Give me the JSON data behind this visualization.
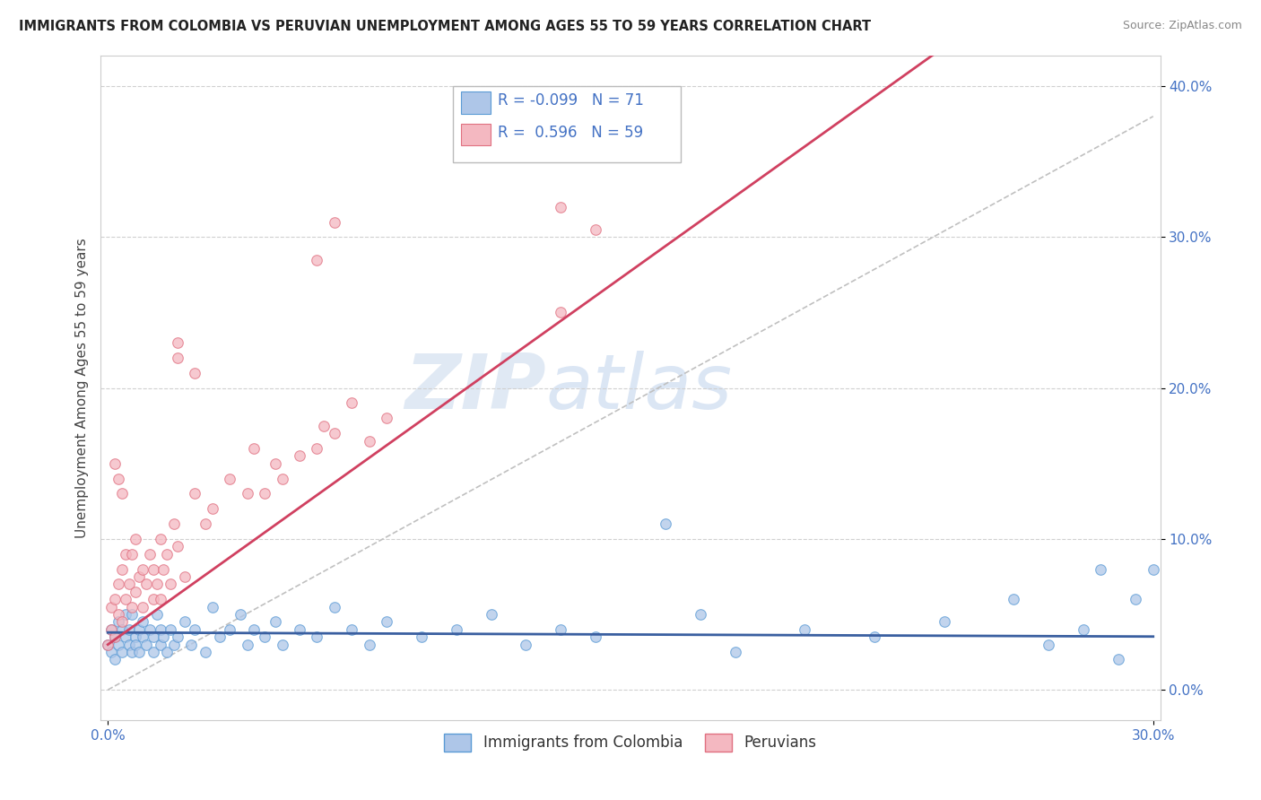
{
  "title": "IMMIGRANTS FROM COLOMBIA VS PERUVIAN UNEMPLOYMENT AMONG AGES 55 TO 59 YEARS CORRELATION CHART",
  "source": "Source: ZipAtlas.com",
  "ylabel": "Unemployment Among Ages 55 to 59 years",
  "xlim": [
    -0.002,
    0.302
  ],
  "ylim": [
    -0.02,
    0.42
  ],
  "xtick_positions": [
    0.0,
    0.3
  ],
  "xticklabels": [
    "0.0%",
    "30.0%"
  ],
  "ytick_positions": [
    0.0,
    0.1,
    0.2,
    0.3,
    0.4
  ],
  "yticklabels": [
    "0.0%",
    "10.0%",
    "20.0%",
    "30.0%",
    "40.0%"
  ],
  "colombia_color": "#aec6e8",
  "colombia_edge": "#5b9bd5",
  "peru_color": "#f4b8c1",
  "peru_edge": "#e07080",
  "colombia_line_color": "#3a5fa0",
  "peru_line_color": "#d04060",
  "trendline_color": "#c0c0c0",
  "R_colombia": -0.099,
  "N_colombia": 71,
  "R_peru": 0.596,
  "N_peru": 59,
  "watermark": "ZIPatlas",
  "legend_label_colombia": "Immigrants from Colombia",
  "legend_label_peru": "Peruvians",
  "colombia_scatter": [
    [
      0.0,
      0.03
    ],
    [
      0.001,
      0.025
    ],
    [
      0.001,
      0.04
    ],
    [
      0.002,
      0.035
    ],
    [
      0.002,
      0.02
    ],
    [
      0.003,
      0.03
    ],
    [
      0.003,
      0.045
    ],
    [
      0.004,
      0.025
    ],
    [
      0.004,
      0.04
    ],
    [
      0.005,
      0.035
    ],
    [
      0.005,
      0.05
    ],
    [
      0.006,
      0.03
    ],
    [
      0.006,
      0.04
    ],
    [
      0.007,
      0.025
    ],
    [
      0.007,
      0.05
    ],
    [
      0.008,
      0.035
    ],
    [
      0.008,
      0.03
    ],
    [
      0.009,
      0.04
    ],
    [
      0.009,
      0.025
    ],
    [
      0.01,
      0.035
    ],
    [
      0.01,
      0.045
    ],
    [
      0.011,
      0.03
    ],
    [
      0.012,
      0.04
    ],
    [
      0.013,
      0.025
    ],
    [
      0.013,
      0.035
    ],
    [
      0.014,
      0.05
    ],
    [
      0.015,
      0.03
    ],
    [
      0.015,
      0.04
    ],
    [
      0.016,
      0.035
    ],
    [
      0.017,
      0.025
    ],
    [
      0.018,
      0.04
    ],
    [
      0.019,
      0.03
    ],
    [
      0.02,
      0.035
    ],
    [
      0.022,
      0.045
    ],
    [
      0.024,
      0.03
    ],
    [
      0.025,
      0.04
    ],
    [
      0.028,
      0.025
    ],
    [
      0.03,
      0.055
    ],
    [
      0.032,
      0.035
    ],
    [
      0.035,
      0.04
    ],
    [
      0.038,
      0.05
    ],
    [
      0.04,
      0.03
    ],
    [
      0.042,
      0.04
    ],
    [
      0.045,
      0.035
    ],
    [
      0.048,
      0.045
    ],
    [
      0.05,
      0.03
    ],
    [
      0.055,
      0.04
    ],
    [
      0.06,
      0.035
    ],
    [
      0.065,
      0.055
    ],
    [
      0.07,
      0.04
    ],
    [
      0.075,
      0.03
    ],
    [
      0.08,
      0.045
    ],
    [
      0.09,
      0.035
    ],
    [
      0.1,
      0.04
    ],
    [
      0.11,
      0.05
    ],
    [
      0.12,
      0.03
    ],
    [
      0.13,
      0.04
    ],
    [
      0.14,
      0.035
    ],
    [
      0.16,
      0.11
    ],
    [
      0.17,
      0.05
    ],
    [
      0.18,
      0.025
    ],
    [
      0.2,
      0.04
    ],
    [
      0.22,
      0.035
    ],
    [
      0.24,
      0.045
    ],
    [
      0.26,
      0.06
    ],
    [
      0.27,
      0.03
    ],
    [
      0.28,
      0.04
    ],
    [
      0.285,
      0.08
    ],
    [
      0.29,
      0.02
    ],
    [
      0.295,
      0.06
    ],
    [
      0.3,
      0.08
    ]
  ],
  "peru_scatter": [
    [
      0.0,
      0.03
    ],
    [
      0.001,
      0.04
    ],
    [
      0.001,
      0.055
    ],
    [
      0.002,
      0.035
    ],
    [
      0.002,
      0.06
    ],
    [
      0.003,
      0.05
    ],
    [
      0.003,
      0.07
    ],
    [
      0.004,
      0.045
    ],
    [
      0.004,
      0.08
    ],
    [
      0.005,
      0.06
    ],
    [
      0.005,
      0.09
    ],
    [
      0.006,
      0.07
    ],
    [
      0.007,
      0.055
    ],
    [
      0.007,
      0.09
    ],
    [
      0.008,
      0.065
    ],
    [
      0.008,
      0.1
    ],
    [
      0.009,
      0.075
    ],
    [
      0.01,
      0.08
    ],
    [
      0.01,
      0.055
    ],
    [
      0.011,
      0.07
    ],
    [
      0.012,
      0.09
    ],
    [
      0.013,
      0.06
    ],
    [
      0.013,
      0.08
    ],
    [
      0.014,
      0.07
    ],
    [
      0.015,
      0.1
    ],
    [
      0.015,
      0.06
    ],
    [
      0.016,
      0.08
    ],
    [
      0.017,
      0.09
    ],
    [
      0.018,
      0.07
    ],
    [
      0.019,
      0.11
    ],
    [
      0.02,
      0.095
    ],
    [
      0.022,
      0.075
    ],
    [
      0.025,
      0.13
    ],
    [
      0.028,
      0.11
    ],
    [
      0.03,
      0.12
    ],
    [
      0.035,
      0.14
    ],
    [
      0.04,
      0.13
    ],
    [
      0.042,
      0.16
    ],
    [
      0.045,
      0.13
    ],
    [
      0.048,
      0.15
    ],
    [
      0.05,
      0.14
    ],
    [
      0.055,
      0.155
    ],
    [
      0.06,
      0.16
    ],
    [
      0.062,
      0.175
    ],
    [
      0.065,
      0.17
    ],
    [
      0.07,
      0.19
    ],
    [
      0.075,
      0.165
    ],
    [
      0.08,
      0.18
    ],
    [
      0.02,
      0.22
    ],
    [
      0.02,
      0.23
    ],
    [
      0.025,
      0.21
    ],
    [
      0.06,
      0.285
    ],
    [
      0.065,
      0.31
    ],
    [
      0.13,
      0.32
    ],
    [
      0.14,
      0.305
    ],
    [
      0.002,
      0.15
    ],
    [
      0.003,
      0.14
    ],
    [
      0.004,
      0.13
    ],
    [
      0.13,
      0.25
    ]
  ],
  "colombia_trendline": [
    -0.009,
    0.038
  ],
  "peru_trendline": [
    1.65,
    0.03
  ],
  "dashed_line": [
    [
      0.0,
      0.0
    ],
    [
      0.3,
      0.38
    ]
  ]
}
